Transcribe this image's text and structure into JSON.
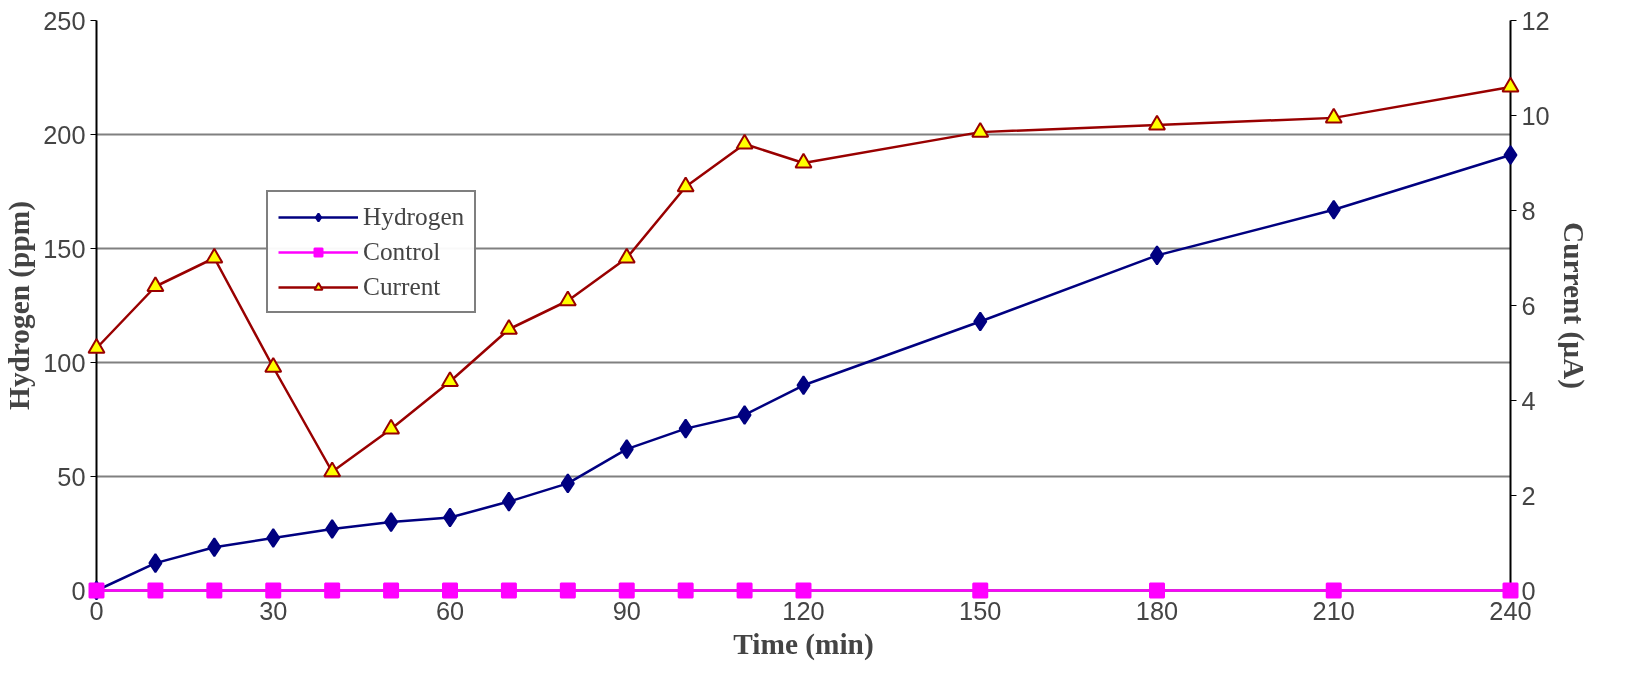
{
  "chart_data": {
    "type": "line",
    "xlabel": "Time (min)",
    "ylabel": "Hydrogen (ppm)",
    "y2label": "Current (µA)",
    "x": [
      0,
      10,
      20,
      30,
      40,
      50,
      60,
      70,
      80,
      90,
      100,
      110,
      120,
      150,
      180,
      210,
      240
    ],
    "xlim": [
      0,
      240
    ],
    "xticks": [
      0,
      30,
      60,
      90,
      120,
      150,
      180,
      210,
      240
    ],
    "ylim": [
      0,
      250
    ],
    "yticks": [
      0,
      50,
      100,
      150,
      200,
      250
    ],
    "y2lim": [
      0,
      12
    ],
    "y2ticks": [
      0,
      2,
      4,
      6,
      8,
      10,
      12
    ],
    "grid": "y",
    "legend": "top left",
    "series": [
      {
        "name": "Hydrogen",
        "color": "#000080",
        "marker": "diamond",
        "values": [
          0,
          12,
          19,
          23,
          27,
          30,
          32,
          39,
          47,
          62,
          71,
          77,
          90,
          118,
          147,
          167,
          191
        ]
      },
      {
        "name": "Control",
        "color": "#ff00ff",
        "marker": "square",
        "values": [
          0,
          0,
          0,
          0,
          0,
          0,
          0,
          0,
          0,
          0,
          0,
          0,
          0,
          0,
          0,
          0,
          0
        ]
      },
      {
        "name": "Current",
        "color": "#990000",
        "marker": "triangle",
        "axis": "y2",
        "values": [
          5.1,
          6.4,
          7.0,
          4.7,
          2.5,
          3.4,
          4.4,
          5.5,
          6.1,
          7.0,
          8.5,
          9.4,
          9.0,
          9.65,
          9.8,
          9.95,
          10.6
        ]
      }
    ]
  }
}
